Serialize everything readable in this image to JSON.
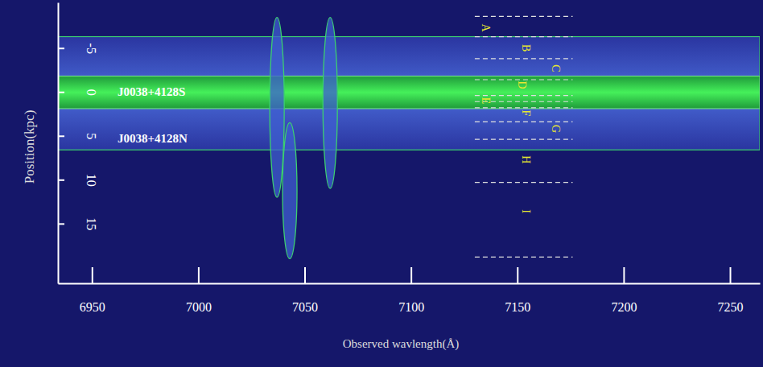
{
  "chart_data": {
    "type": "spectrum2d",
    "x_label": "Observed wavlength(Å)",
    "y_label": "Position(kpc)",
    "xlim": [
      6934,
      7264
    ],
    "ylim": [
      -10.2,
      21.8
    ],
    "xticks": [
      6950,
      7000,
      7050,
      7100,
      7150,
      7200,
      7250
    ],
    "yticks": [
      -5,
      0,
      5,
      10,
      15
    ],
    "continuum": {
      "extent": [
        -6.3,
        6.6
      ],
      "core": [
        -1.8,
        1.9
      ]
    },
    "emission_lines": [
      {
        "wavelength": 7037,
        "extent": [
          -8.5,
          12
        ]
      },
      {
        "wavelength": 7062,
        "extent": [
          -8.5,
          11
        ]
      },
      {
        "wavelength": 7043,
        "extent": [
          3.5,
          19
        ]
      }
    ],
    "aperture_xrange": [
      7130,
      7176
    ],
    "aperture_edges": [
      -8.6,
      -6.3,
      -3.8,
      -1.4,
      0.4,
      1.1,
      1.8,
      3.4,
      5.4,
      10.3,
      18.8
    ],
    "annotations": [
      {
        "text": "J0038+4128S",
        "x": 6962,
        "y": 0
      },
      {
        "text": "J0038+4128N",
        "x": 6962,
        "y": 5.3
      },
      {
        "text": "A",
        "x": 7135,
        "y": -7.3
      },
      {
        "text": "B",
        "x": 7154,
        "y": -5.0
      },
      {
        "text": "C",
        "x": 7168,
        "y": -2.7
      },
      {
        "text": "D",
        "x": 7152,
        "y": -0.8
      },
      {
        "text": "E",
        "x": 7135,
        "y": 1.0
      },
      {
        "text": "F",
        "x": 7154,
        "y": 2.4
      },
      {
        "text": "G",
        "x": 7168,
        "y": 4.2
      },
      {
        "text": "H",
        "x": 7154,
        "y": 7.7
      },
      {
        "text": "I",
        "x": 7154,
        "y": 13.6
      }
    ]
  }
}
